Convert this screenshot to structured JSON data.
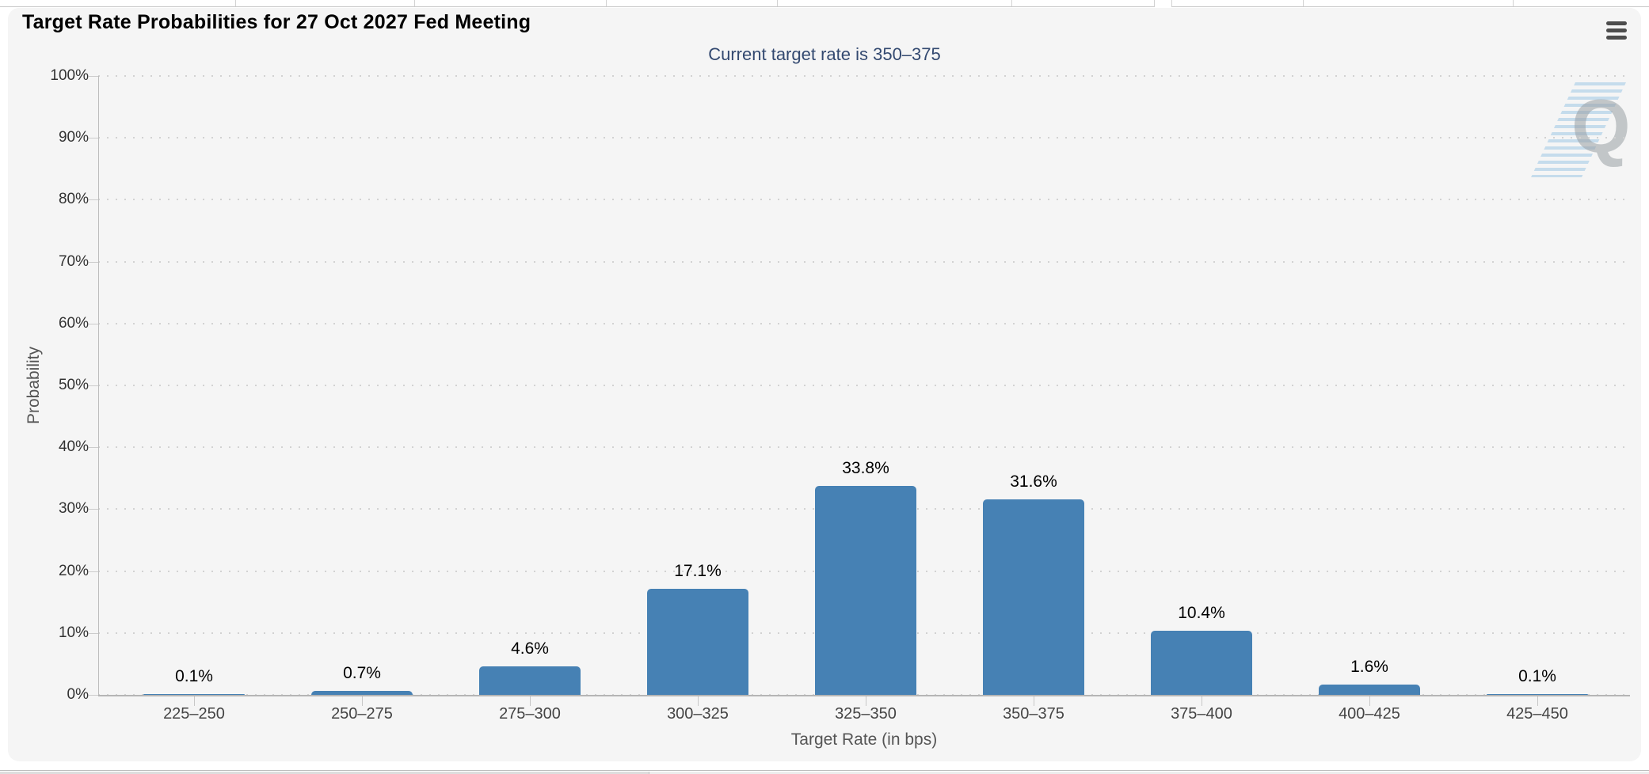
{
  "header": {
    "title": "Target Rate Probabilities for 27 Oct 2027 Fed Meeting",
    "subtitle": "Current target rate is 350–375",
    "menu_icon": "hamburger-menu-icon"
  },
  "watermark": {
    "letter": "Q"
  },
  "colors": {
    "bar": "#4681b4",
    "card_background": "#f5f5f5",
    "subtitle_text": "#334970"
  },
  "chart_data": {
    "type": "bar",
    "title": "Target Rate Probabilities for 27 Oct 2027 Fed Meeting",
    "subtitle": "Current target rate is 350–375",
    "categories": [
      "225–250",
      "250–275",
      "275–300",
      "300–325",
      "325–350",
      "350–375",
      "375–400",
      "400–425",
      "425–450"
    ],
    "values": [
      0.1,
      0.7,
      4.6,
      17.1,
      33.8,
      31.6,
      10.4,
      1.6,
      0.1
    ],
    "data_labels": [
      "0.1%",
      "0.7%",
      "4.6%",
      "17.1%",
      "33.8%",
      "31.6%",
      "10.4%",
      "1.6%",
      "0.1%"
    ],
    "xlabel": "Target Rate (in bps)",
    "ylabel": "Probability",
    "ylim": [
      0,
      100
    ],
    "ytick_labels": [
      "0%",
      "10%",
      "20%",
      "30%",
      "40%",
      "50%",
      "60%",
      "70%",
      "80%",
      "90%",
      "100%"
    ],
    "grid": "dotted horizontal gridlines every 10%",
    "legend": "none",
    "bar_color": "#4681b4"
  }
}
